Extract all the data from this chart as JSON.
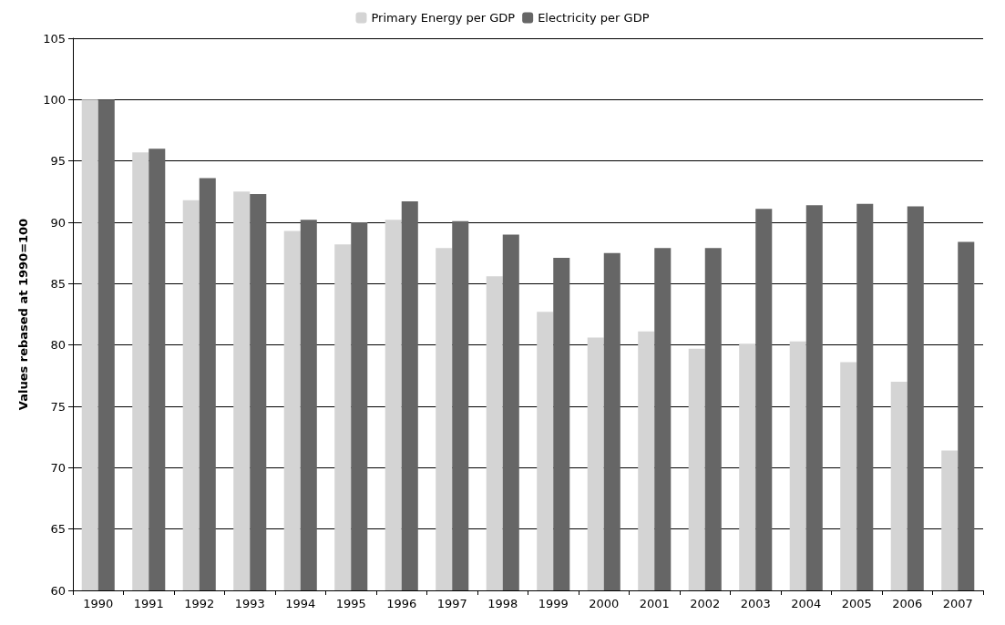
{
  "chart_data": {
    "type": "bar",
    "ylabel": "Values rebased at 1990=100",
    "categories": [
      "1990",
      "1991",
      "1992",
      "1993",
      "1994",
      "1995",
      "1996",
      "1997",
      "1998",
      "1999",
      "2000",
      "2001",
      "2002",
      "2003",
      "2004",
      "2005",
      "2006",
      "2007"
    ],
    "series": [
      {
        "name": "Primary Energy per GDP",
        "color": "#d4d4d4",
        "values": [
          100,
          95.7,
          91.8,
          92.5,
          89.3,
          88.2,
          90.2,
          87.9,
          85.6,
          82.7,
          80.6,
          81.1,
          79.7,
          80.1,
          80.3,
          78.6,
          77.0,
          71.4
        ]
      },
      {
        "name": "Electricity per GDP",
        "color": "#666666",
        "values": [
          100,
          96.0,
          93.6,
          92.3,
          90.2,
          90.0,
          91.7,
          90.1,
          89.0,
          87.1,
          87.5,
          87.9,
          87.9,
          91.1,
          91.4,
          91.5,
          91.3,
          88.4
        ]
      }
    ],
    "ylim": [
      60,
      105
    ],
    "yticks": [
      60,
      65,
      70,
      75,
      80,
      85,
      90,
      95,
      100,
      105
    ],
    "grid": "y",
    "legend": "top"
  }
}
